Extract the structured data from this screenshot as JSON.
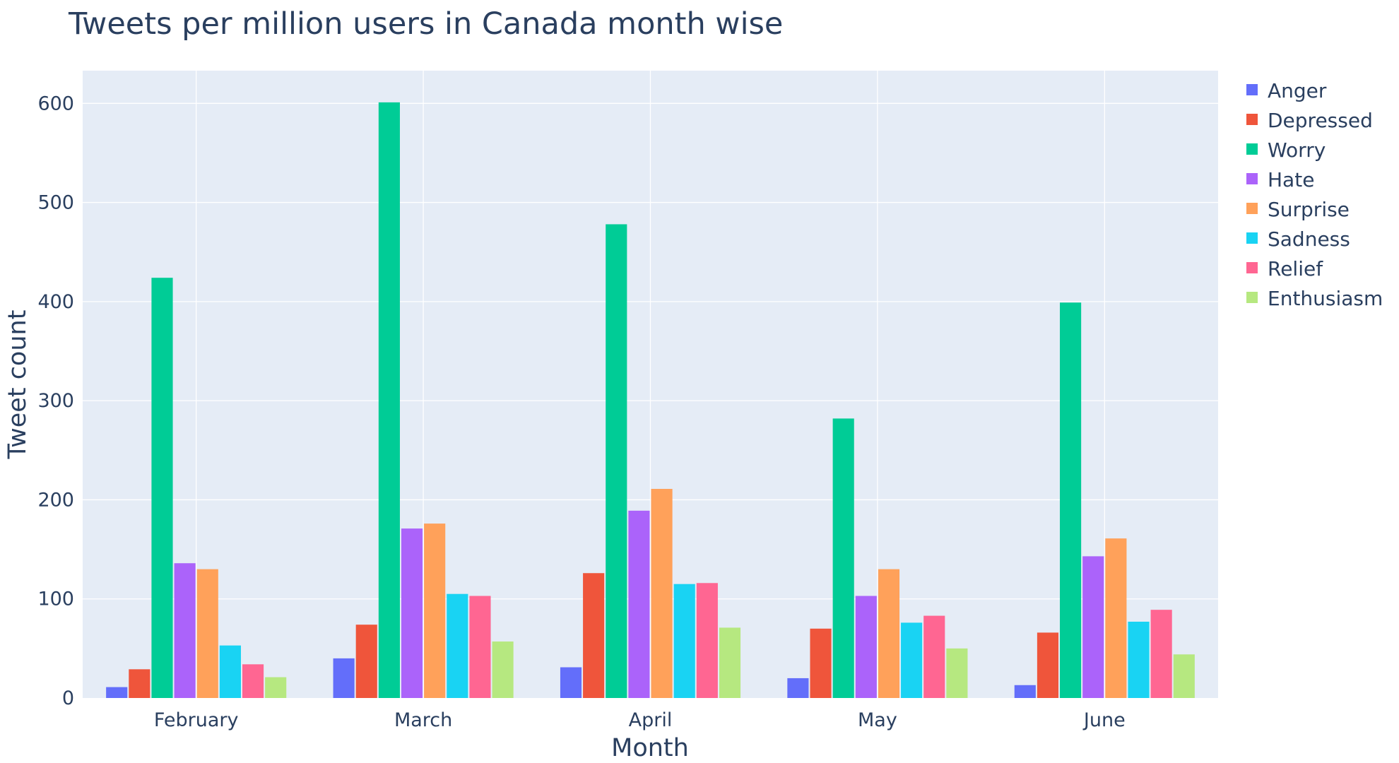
{
  "chart_data": {
    "type": "bar",
    "title": "Tweets per million users in Canada month wise",
    "xlabel": "Month",
    "ylabel": "Tweet count",
    "categories": [
      "February",
      "March",
      "April",
      "May",
      "June"
    ],
    "ylim": [
      0,
      633
    ],
    "yticks": [
      0,
      100,
      200,
      300,
      400,
      500,
      600
    ],
    "grid": true,
    "legend_position": "right",
    "series": [
      {
        "name": "Anger",
        "color": "#636efa",
        "values": [
          11,
          40,
          31,
          20,
          13
        ]
      },
      {
        "name": "Depressed",
        "color": "#ef553b",
        "values": [
          29,
          74,
          126,
          70,
          66
        ]
      },
      {
        "name": "Worry",
        "color": "#00cc96",
        "values": [
          424,
          601,
          478,
          282,
          399
        ]
      },
      {
        "name": "Hate",
        "color": "#ab63fa",
        "values": [
          136,
          171,
          189,
          103,
          143
        ]
      },
      {
        "name": "Surprise",
        "color": "#ffa15a",
        "values": [
          130,
          176,
          211,
          130,
          161
        ]
      },
      {
        "name": "Sadness",
        "color": "#19d3f3",
        "values": [
          53,
          105,
          115,
          76,
          77
        ]
      },
      {
        "name": "Relief",
        "color": "#ff6692",
        "values": [
          34,
          103,
          116,
          83,
          89
        ]
      },
      {
        "name": "Enthusiasm",
        "color": "#b6e880",
        "values": [
          21,
          57,
          71,
          50,
          44
        ]
      }
    ]
  }
}
